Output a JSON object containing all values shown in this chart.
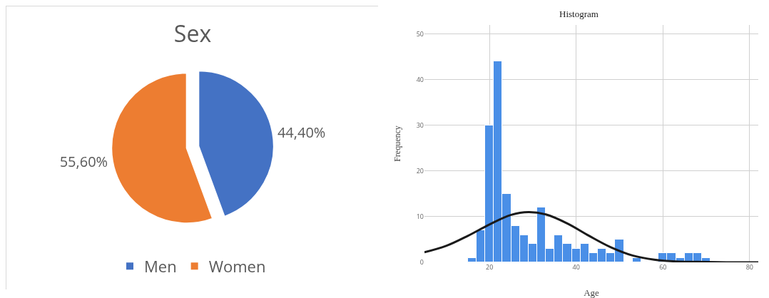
{
  "chart_data": [
    {
      "type": "pie",
      "title": "Sex",
      "categories": [
        "Men",
        "Women"
      ],
      "values": [
        44.4,
        55.6
      ],
      "colors": [
        "#4472c4",
        "#ed7d31"
      ],
      "value_labels": [
        "44,40%",
        "55,60%"
      ],
      "legend": "bottom"
    },
    {
      "type": "histogram",
      "title": "Histogram",
      "xlabel": "Age",
      "ylabel": "Frequency",
      "bins": [
        15,
        17,
        19,
        21,
        23,
        25,
        27,
        29,
        31,
        33,
        35,
        37,
        39,
        41,
        43,
        45,
        47,
        49,
        51,
        53,
        55,
        57,
        59,
        61,
        63,
        65,
        67,
        69,
        71
      ],
      "series": [
        {
          "type": "histogram",
          "color": "#4a8fe7",
          "values": [
            1,
            7,
            30,
            44,
            15,
            8,
            6,
            4,
            12,
            3,
            6,
            4,
            3,
            4,
            2,
            3,
            2,
            5,
            0,
            1,
            0,
            0,
            2,
            2,
            1,
            2,
            2,
            1
          ]
        },
        {
          "type": "line",
          "color": "#1a1a1a",
          "x": [
            5,
            10,
            15,
            20,
            25,
            29,
            33,
            38,
            43,
            48,
            53,
            58,
            63,
            68,
            75,
            82
          ],
          "values": [
            2.2,
            3.6,
            5.8,
            8.3,
            10.4,
            11,
            10.5,
            8.5,
            5.8,
            3.3,
            1.5,
            0.6,
            0.2,
            0.1,
            0,
            0
          ]
        }
      ],
      "xlim": [
        5,
        82
      ],
      "xticks": [
        20,
        40,
        60,
        80
      ],
      "ylim": [
        0,
        52
      ],
      "yticks": [
        0,
        10,
        20,
        30,
        40,
        50
      ],
      "grid": true,
      "legend": false
    }
  ]
}
